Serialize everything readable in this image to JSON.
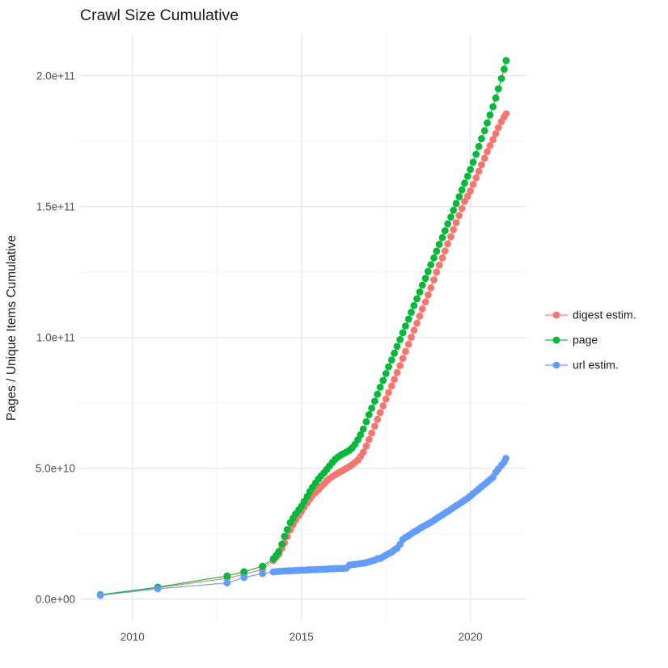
{
  "chart_data": {
    "type": "scatter",
    "style": "cumulative points connected by thin lines (ggplot2 look)",
    "title": "Crawl Size Cumulative",
    "xlabel": "",
    "ylabel": "Pages / Unique Items Cumulative",
    "values_unit_e9": "series point values are billions (1e9) of pages/items",
    "xlim": [
      2008.45,
      2021.66
    ],
    "ylim_e9": [
      -8.7,
      216
    ],
    "grid": "on",
    "legend_position": "right",
    "x_ticks": {
      "major": [
        {
          "label": "2010",
          "value": 2010
        },
        {
          "label": "2015",
          "value": 2015
        },
        {
          "label": "2020",
          "value": 2020
        }
      ],
      "minor": [
        2012.5,
        2017.5
      ]
    },
    "y_ticks": {
      "major": [
        {
          "label": "0.0e+00",
          "value_e9": 0
        },
        {
          "label": "5.0e+10",
          "value_e9": 50
        },
        {
          "label": "1.0e+11",
          "value_e9": 100
        },
        {
          "label": "1.5e+11",
          "value_e9": 150
        },
        {
          "label": "2.0e+11",
          "value_e9": 200
        }
      ],
      "minor_e9": [
        25,
        75,
        125,
        175
      ]
    },
    "series": [
      {
        "name": "digest estim.",
        "color": "#F8766D",
        "points": [
          [
            2009.05,
            1.6
          ],
          [
            2010.75,
            4.4
          ],
          [
            2012.8,
            8.0
          ],
          [
            2013.3,
            9.5
          ],
          [
            2013.85,
            11.4
          ],
          [
            2014.17,
            14.8
          ],
          [
            2014.25,
            16.0
          ],
          [
            2014.33,
            17.2
          ],
          [
            2014.42,
            19.5
          ],
          [
            2014.5,
            21.5
          ],
          [
            2014.58,
            24.0
          ],
          [
            2014.67,
            26.5
          ],
          [
            2014.75,
            28.5
          ],
          [
            2014.83,
            30.3
          ],
          [
            2014.92,
            32.0
          ],
          [
            2015.0,
            33.6
          ],
          [
            2015.08,
            35.2
          ],
          [
            2015.17,
            36.8
          ],
          [
            2015.25,
            38.3
          ],
          [
            2015.33,
            39.6
          ],
          [
            2015.42,
            40.8
          ],
          [
            2015.5,
            41.9
          ],
          [
            2015.58,
            43.0
          ],
          [
            2015.67,
            44.1
          ],
          [
            2015.75,
            45.2
          ],
          [
            2015.83,
            46.1
          ],
          [
            2015.92,
            46.9
          ],
          [
            2016.0,
            47.6
          ],
          [
            2016.08,
            48.2
          ],
          [
            2016.17,
            48.8
          ],
          [
            2016.25,
            49.4
          ],
          [
            2016.33,
            50.0
          ],
          [
            2016.42,
            50.7
          ],
          [
            2016.5,
            51.4
          ],
          [
            2016.58,
            52.2
          ],
          [
            2016.67,
            53.2
          ],
          [
            2016.75,
            54.5
          ],
          [
            2016.83,
            56.2
          ],
          [
            2016.92,
            58.5
          ],
          [
            2017.0,
            61.0
          ],
          [
            2017.08,
            63.5
          ],
          [
            2017.17,
            66.1
          ],
          [
            2017.25,
            68.7
          ],
          [
            2017.33,
            71.3
          ],
          [
            2017.42,
            73.9
          ],
          [
            2017.5,
            76.5
          ],
          [
            2017.58,
            79.0
          ],
          [
            2017.67,
            81.5
          ],
          [
            2017.75,
            84.0
          ],
          [
            2017.83,
            86.6
          ],
          [
            2017.92,
            89.3
          ],
          [
            2018.0,
            92.0
          ],
          [
            2018.08,
            94.7
          ],
          [
            2018.17,
            97.4
          ],
          [
            2018.25,
            100.1
          ],
          [
            2018.33,
            102.8
          ],
          [
            2018.42,
            105.5
          ],
          [
            2018.5,
            108.2
          ],
          [
            2018.58,
            110.9
          ],
          [
            2018.67,
            113.6
          ],
          [
            2018.75,
            116.3
          ],
          [
            2018.83,
            119.0
          ],
          [
            2018.92,
            122.0
          ],
          [
            2019.0,
            125.0
          ],
          [
            2019.08,
            127.7
          ],
          [
            2019.17,
            130.4
          ],
          [
            2019.25,
            133.1
          ],
          [
            2019.33,
            135.8
          ],
          [
            2019.42,
            138.5
          ],
          [
            2019.5,
            141.2
          ],
          [
            2019.58,
            143.9
          ],
          [
            2019.67,
            146.6
          ],
          [
            2019.75,
            149.3
          ],
          [
            2019.83,
            152.0
          ],
          [
            2019.92,
            154.0
          ],
          [
            2020.0,
            156.0
          ],
          [
            2020.08,
            158.5
          ],
          [
            2020.17,
            161.0
          ],
          [
            2020.25,
            163.5
          ],
          [
            2020.33,
            166.0
          ],
          [
            2020.42,
            168.5
          ],
          [
            2020.5,
            171.0
          ],
          [
            2020.58,
            173.3
          ],
          [
            2020.67,
            175.6
          ],
          [
            2020.75,
            177.9
          ],
          [
            2020.83,
            180.2
          ],
          [
            2020.92,
            182.5
          ],
          [
            2021.0,
            184.3
          ],
          [
            2021.06,
            185.5
          ]
        ]
      },
      {
        "name": "page",
        "color": "#00BA38",
        "points": [
          [
            2009.05,
            1.7
          ],
          [
            2010.75,
            4.6
          ],
          [
            2012.8,
            8.9
          ],
          [
            2013.3,
            10.5
          ],
          [
            2013.85,
            12.6
          ],
          [
            2014.17,
            15.4
          ],
          [
            2014.25,
            16.7
          ],
          [
            2014.33,
            18.2
          ],
          [
            2014.42,
            21.0
          ],
          [
            2014.5,
            24.0
          ],
          [
            2014.58,
            26.6
          ],
          [
            2014.67,
            29.2
          ],
          [
            2014.75,
            31.0
          ],
          [
            2014.83,
            32.6
          ],
          [
            2014.92,
            34.1
          ],
          [
            2015.0,
            35.5
          ],
          [
            2015.08,
            37.3
          ],
          [
            2015.17,
            39.2
          ],
          [
            2015.25,
            41.1
          ],
          [
            2015.33,
            42.8
          ],
          [
            2015.42,
            44.4
          ],
          [
            2015.5,
            45.9
          ],
          [
            2015.58,
            47.1
          ],
          [
            2015.67,
            48.3
          ],
          [
            2015.75,
            49.6
          ],
          [
            2015.83,
            50.9
          ],
          [
            2015.92,
            52.3
          ],
          [
            2016.0,
            53.5
          ],
          [
            2016.08,
            54.3
          ],
          [
            2016.17,
            55.1
          ],
          [
            2016.25,
            55.7
          ],
          [
            2016.33,
            56.2
          ],
          [
            2016.42,
            56.9
          ],
          [
            2016.5,
            57.8
          ],
          [
            2016.58,
            59.1
          ],
          [
            2016.67,
            60.9
          ],
          [
            2016.75,
            62.8
          ],
          [
            2016.83,
            65.0
          ],
          [
            2016.92,
            67.8
          ],
          [
            2017.0,
            70.5
          ],
          [
            2017.08,
            73.0
          ],
          [
            2017.17,
            75.7
          ],
          [
            2017.25,
            78.3
          ],
          [
            2017.33,
            81.0
          ],
          [
            2017.42,
            83.6
          ],
          [
            2017.5,
            86.2
          ],
          [
            2017.58,
            88.8
          ],
          [
            2017.67,
            91.4
          ],
          [
            2017.75,
            94.0
          ],
          [
            2017.83,
            96.6
          ],
          [
            2017.92,
            99.2
          ],
          [
            2018.0,
            101.8
          ],
          [
            2018.08,
            104.4
          ],
          [
            2018.17,
            107.0
          ],
          [
            2018.25,
            109.6
          ],
          [
            2018.33,
            112.2
          ],
          [
            2018.42,
            114.8
          ],
          [
            2018.5,
            117.4
          ],
          [
            2018.58,
            120.0
          ],
          [
            2018.67,
            122.6
          ],
          [
            2018.75,
            125.2
          ],
          [
            2018.83,
            127.8
          ],
          [
            2018.92,
            130.4
          ],
          [
            2019.0,
            133.0
          ],
          [
            2019.08,
            135.6
          ],
          [
            2019.17,
            138.2
          ],
          [
            2019.25,
            140.8
          ],
          [
            2019.33,
            143.4
          ],
          [
            2019.42,
            146.0
          ],
          [
            2019.5,
            148.6
          ],
          [
            2019.58,
            151.2
          ],
          [
            2019.67,
            153.8
          ],
          [
            2019.75,
            156.4
          ],
          [
            2019.83,
            159.0
          ],
          [
            2019.92,
            161.6
          ],
          [
            2020.0,
            164.2
          ],
          [
            2020.08,
            167.0
          ],
          [
            2020.17,
            170.0
          ],
          [
            2020.25,
            173.0
          ],
          [
            2020.33,
            176.0
          ],
          [
            2020.42,
            179.0
          ],
          [
            2020.5,
            182.0
          ],
          [
            2020.58,
            185.0
          ],
          [
            2020.67,
            188.2
          ],
          [
            2020.75,
            191.5
          ],
          [
            2020.83,
            195.0
          ],
          [
            2020.92,
            199.0
          ],
          [
            2021.0,
            202.5
          ],
          [
            2021.06,
            205.8
          ]
        ]
      },
      {
        "name": "url estim.",
        "color": "#619CFF",
        "points": [
          [
            2009.05,
            1.5
          ],
          [
            2010.75,
            4.0
          ],
          [
            2012.8,
            6.2
          ],
          [
            2013.3,
            8.3
          ],
          [
            2013.85,
            9.8
          ],
          [
            2014.17,
            10.4
          ],
          [
            2014.25,
            10.5
          ],
          [
            2014.33,
            10.6
          ],
          [
            2014.42,
            10.7
          ],
          [
            2014.5,
            10.8
          ],
          [
            2014.58,
            10.8
          ],
          [
            2014.67,
            10.9
          ],
          [
            2014.75,
            10.9
          ],
          [
            2014.83,
            11.0
          ],
          [
            2014.92,
            11.0
          ],
          [
            2015.0,
            11.1
          ],
          [
            2015.08,
            11.1
          ],
          [
            2015.17,
            11.2
          ],
          [
            2015.25,
            11.2
          ],
          [
            2015.33,
            11.3
          ],
          [
            2015.42,
            11.3
          ],
          [
            2015.5,
            11.4
          ],
          [
            2015.58,
            11.4
          ],
          [
            2015.67,
            11.5
          ],
          [
            2015.75,
            11.5
          ],
          [
            2015.83,
            11.6
          ],
          [
            2015.92,
            11.6
          ],
          [
            2016.0,
            11.7
          ],
          [
            2016.08,
            11.7
          ],
          [
            2016.17,
            11.8
          ],
          [
            2016.25,
            11.8
          ],
          [
            2016.33,
            11.9
          ],
          [
            2016.42,
            13.0
          ],
          [
            2016.5,
            13.2
          ],
          [
            2016.58,
            13.3
          ],
          [
            2016.67,
            13.5
          ],
          [
            2016.75,
            13.6
          ],
          [
            2016.83,
            13.8
          ],
          [
            2016.92,
            14.0
          ],
          [
            2017.0,
            14.3
          ],
          [
            2017.08,
            14.6
          ],
          [
            2017.17,
            14.9
          ],
          [
            2017.25,
            15.5
          ],
          [
            2017.33,
            15.6
          ],
          [
            2017.42,
            16.2
          ],
          [
            2017.5,
            16.8
          ],
          [
            2017.58,
            17.4
          ],
          [
            2017.67,
            18.0
          ],
          [
            2017.75,
            18.8
          ],
          [
            2017.83,
            19.5
          ],
          [
            2017.92,
            21.0
          ],
          [
            2018.0,
            22.8
          ],
          [
            2018.08,
            23.6
          ],
          [
            2018.17,
            24.3
          ],
          [
            2018.25,
            25.0
          ],
          [
            2018.33,
            25.7
          ],
          [
            2018.42,
            26.3
          ],
          [
            2018.5,
            27.0
          ],
          [
            2018.58,
            27.6
          ],
          [
            2018.67,
            28.2
          ],
          [
            2018.75,
            28.8
          ],
          [
            2018.83,
            29.4
          ],
          [
            2018.92,
            30.1
          ],
          [
            2019.0,
            30.8
          ],
          [
            2019.08,
            31.5
          ],
          [
            2019.17,
            32.2
          ],
          [
            2019.25,
            32.9
          ],
          [
            2019.33,
            33.6
          ],
          [
            2019.42,
            34.3
          ],
          [
            2019.5,
            35.0
          ],
          [
            2019.58,
            35.7
          ],
          [
            2019.67,
            36.4
          ],
          [
            2019.75,
            37.1
          ],
          [
            2019.83,
            37.8
          ],
          [
            2019.92,
            38.6
          ],
          [
            2020.0,
            39.4
          ],
          [
            2020.08,
            40.3
          ],
          [
            2020.17,
            41.2
          ],
          [
            2020.25,
            42.1
          ],
          [
            2020.33,
            43.0
          ],
          [
            2020.42,
            43.9
          ],
          [
            2020.5,
            44.8
          ],
          [
            2020.58,
            45.7
          ],
          [
            2020.67,
            46.6
          ],
          [
            2020.75,
            48.5
          ],
          [
            2020.83,
            49.8
          ],
          [
            2020.92,
            51.2
          ],
          [
            2021.0,
            52.4
          ],
          [
            2021.05,
            53.8
          ]
        ]
      }
    ]
  },
  "legend": {
    "items": [
      {
        "label": "digest estim.",
        "color": "#F8766D"
      },
      {
        "label": "page",
        "color": "#00BA38"
      },
      {
        "label": "url estim.",
        "color": "#619CFF"
      }
    ]
  }
}
